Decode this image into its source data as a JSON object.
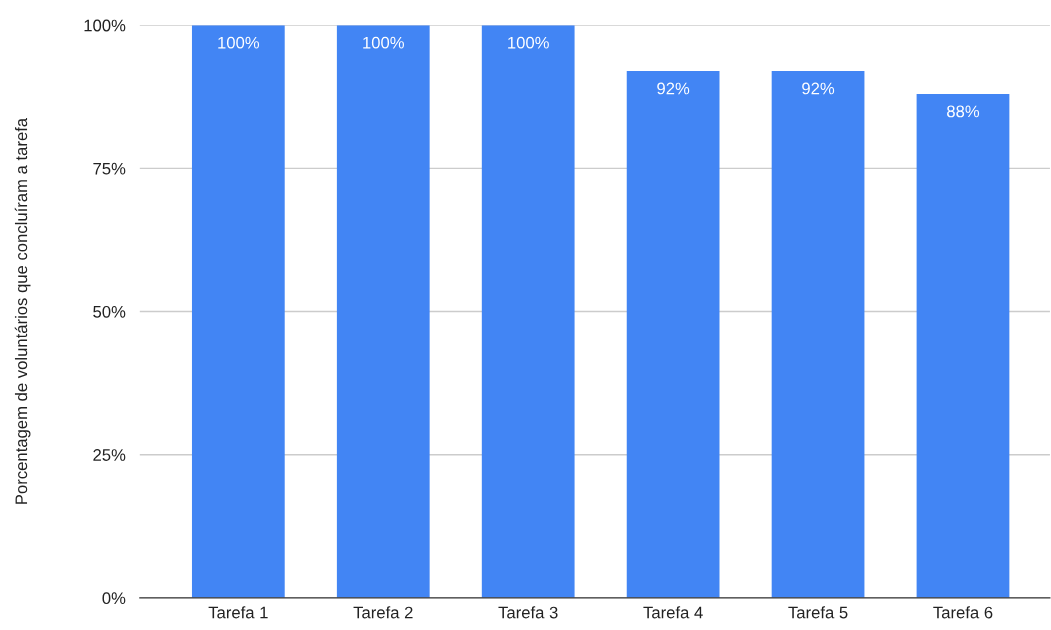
{
  "chart_data": {
    "type": "bar",
    "ylabel": "Porcentagem de voluntários que concluíram a tarefa",
    "categories": [
      "Tarefa 1",
      "Tarefa 2",
      "Tarefa 3",
      "Tarefa 4",
      "Tarefa 5",
      "Tarefa 6"
    ],
    "values": [
      100,
      100,
      100,
      92,
      92,
      88
    ],
    "value_labels": [
      "100%",
      "100%",
      "100%",
      "92%",
      "92%",
      "88%"
    ],
    "color": "#4285f4",
    "ylim": [
      0,
      100
    ],
    "yticks": [
      {
        "value": 0,
        "label": "0%"
      },
      {
        "value": 25,
        "label": "25%"
      },
      {
        "value": 50,
        "label": "50%"
      },
      {
        "value": 75,
        "label": "75%"
      },
      {
        "value": 100,
        "label": "100%"
      }
    ],
    "grid": "y"
  }
}
